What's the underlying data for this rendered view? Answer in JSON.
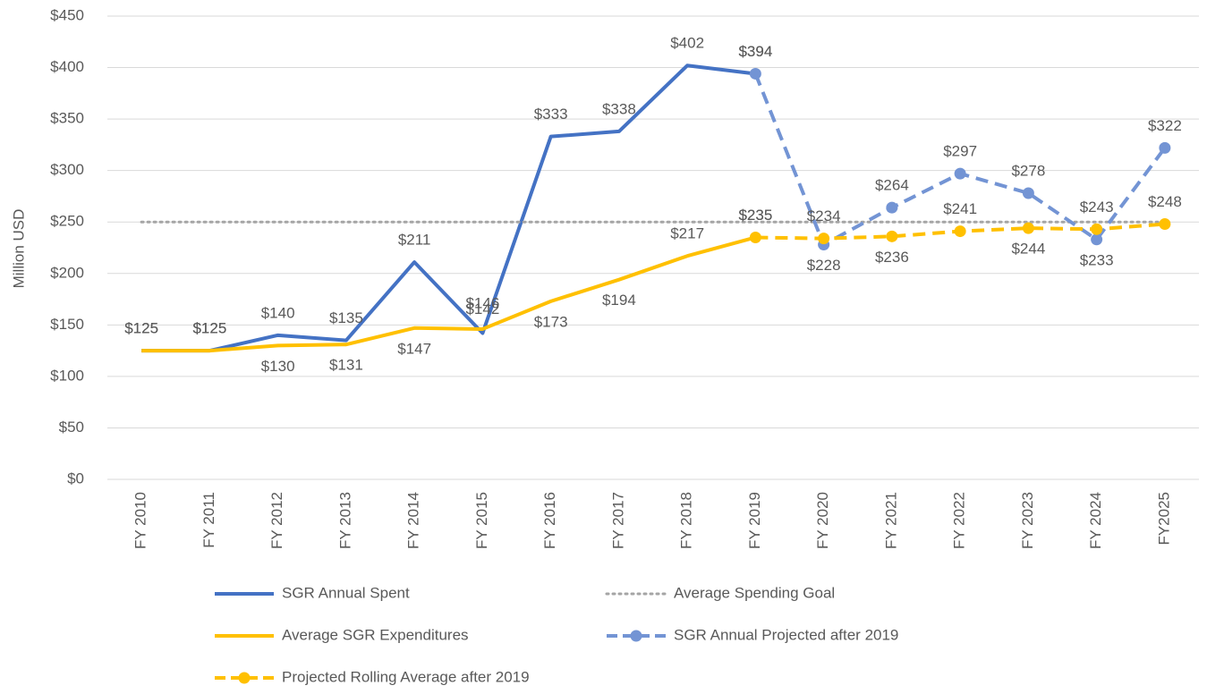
{
  "chart_data": {
    "type": "line",
    "y_label": "Million USD",
    "categories": [
      "FY 2010",
      "FY 2011",
      "FY 2012",
      "FY 2013",
      "FY 2014",
      "FY 2015",
      "FY 2016",
      "FY 2017",
      "FY 2018",
      "FY 2019",
      "FY 2020",
      "FY 2021",
      "FY 2022",
      "FY 2023",
      "FY 2024",
      "FY2025"
    ],
    "ylim": [
      0,
      450
    ],
    "yticks": [
      {
        "value": 0,
        "label": "$0"
      },
      {
        "value": 50,
        "label": "$50"
      },
      {
        "value": 100,
        "label": "$100"
      },
      {
        "value": 150,
        "label": "$150"
      },
      {
        "value": 200,
        "label": "$200"
      },
      {
        "value": 250,
        "label": "$250"
      },
      {
        "value": 300,
        "label": "$300"
      },
      {
        "value": 350,
        "label": "$350"
      },
      {
        "value": 400,
        "label": "$400"
      },
      {
        "value": 450,
        "label": "$450"
      }
    ],
    "grid": true,
    "legend": "bottom",
    "series": [
      {
        "name": "SGR Annual Spent",
        "color": "#4472c4",
        "style": "solid",
        "marker": false,
        "values": [
          125,
          125,
          140,
          135,
          211,
          142,
          333,
          338,
          402,
          394,
          null,
          null,
          null,
          null,
          null,
          null
        ],
        "value_labels": [
          "$125",
          "$125",
          "$140",
          "$135",
          "$211",
          "$142",
          "$333",
          "$338",
          "$402",
          "$394",
          null,
          null,
          null,
          null,
          null,
          null
        ]
      },
      {
        "name": "Average Spending Goal",
        "color": "#a5a5a5",
        "style": "dotted",
        "marker": false,
        "values": [
          250,
          250,
          250,
          250,
          250,
          250,
          250,
          250,
          250,
          250,
          250,
          250,
          250,
          250,
          250,
          250
        ]
      },
      {
        "name": "Average SGR Expenditures",
        "color": "#ffc000",
        "style": "solid",
        "marker": false,
        "values": [
          125,
          125,
          130,
          131,
          147,
          146,
          173,
          194,
          217,
          235,
          null,
          null,
          null,
          null,
          null,
          null
        ],
        "value_labels": [
          "$125",
          "$125",
          "$130",
          "$131",
          "$147",
          "$146",
          "$173",
          "$194",
          "$217",
          "$235",
          null,
          null,
          null,
          null,
          null,
          null
        ]
      },
      {
        "name": "SGR Annual Projected after 2019",
        "color": "#7394d4",
        "style": "dashed",
        "marker": true,
        "values": [
          null,
          null,
          null,
          null,
          null,
          null,
          null,
          null,
          null,
          394,
          228,
          264,
          297,
          278,
          233,
          322
        ],
        "value_labels": [
          null,
          null,
          null,
          null,
          null,
          null,
          null,
          null,
          null,
          "$394",
          "$228",
          "$264",
          "$297",
          "$278",
          "$233",
          "$322"
        ]
      },
      {
        "name": "Projected Rolling Average after 2019",
        "color": "#ffc000",
        "style": "dashed",
        "marker": true,
        "values": [
          null,
          null,
          null,
          null,
          null,
          null,
          null,
          null,
          null,
          235,
          234,
          236,
          241,
          244,
          243,
          248
        ],
        "value_labels": [
          null,
          null,
          null,
          null,
          null,
          null,
          null,
          null,
          null,
          "$235",
          "$234",
          "$236",
          "$241",
          "$244",
          "$243",
          "$248"
        ]
      }
    ]
  }
}
